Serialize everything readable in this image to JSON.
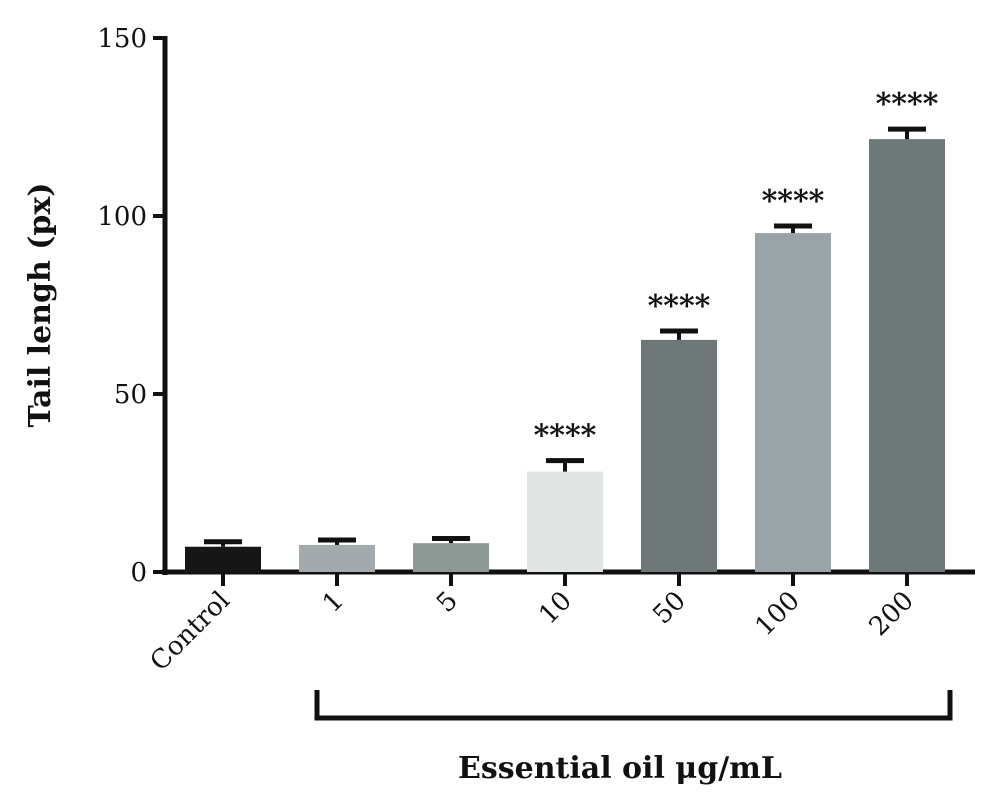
{
  "chart_data": {
    "type": "bar",
    "title": "",
    "ylabel": "Tail lengh (px)",
    "xlabel": "Essential oil μg/mL",
    "ylim": [
      0,
      150
    ],
    "yticks": [
      0,
      50,
      100,
      150
    ],
    "categories": [
      "Control",
      "1",
      "5",
      "10",
      "50",
      "100",
      "200"
    ],
    "values": [
      7.1,
      7.6,
      8.1,
      28.2,
      65.2,
      95.2,
      121.6
    ],
    "error_upper": [
      8.5,
      9.0,
      9.4,
      31.3,
      67.7,
      97.2,
      124.4
    ],
    "significance": [
      "",
      "",
      "",
      "****",
      "****",
      "****",
      "****"
    ],
    "colors": [
      "#161616",
      "#a3aaad",
      "#8e9996",
      "#e0e4e3",
      "#6e7777",
      "#9aa4a8",
      "#6e7878"
    ],
    "bracket_label": "Essential oil μg/mL",
    "grid": false,
    "legend": "none"
  }
}
